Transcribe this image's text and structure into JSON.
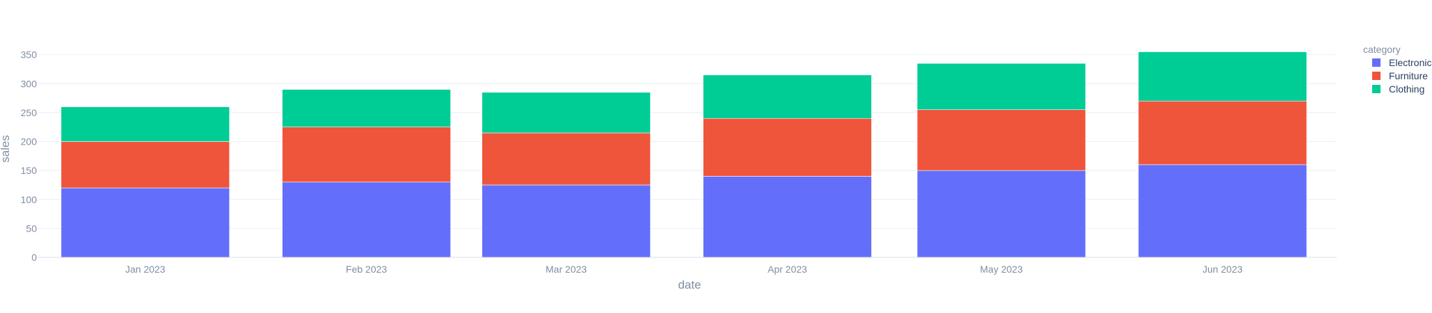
{
  "chart_data": {
    "type": "bar",
    "stacked": true,
    "categories": [
      "Jan 2023",
      "Feb 2023",
      "Mar 2023",
      "Apr 2023",
      "May 2023",
      "Jun 2023"
    ],
    "x_dates": [
      "2023-01-01",
      "2023-02-01",
      "2023-03-01",
      "2023-04-01",
      "2023-05-01",
      "2023-06-01"
    ],
    "series": [
      {
        "name": "Electronics",
        "color": "#636efa",
        "values": [
          120,
          130,
          125,
          140,
          150,
          160
        ]
      },
      {
        "name": "Furniture",
        "color": "#ef553b",
        "values": [
          80,
          95,
          90,
          100,
          105,
          110
        ]
      },
      {
        "name": "Clothing",
        "color": "#00cc96",
        "values": [
          60,
          65,
          70,
          75,
          80,
          85
        ]
      }
    ],
    "xlabel": "date",
    "ylabel": "sales",
    "ylim": [
      0,
      370
    ],
    "yticks": [
      0,
      50,
      100,
      150,
      200,
      250,
      300,
      350
    ],
    "legend_title": "category",
    "legend_position": "top-right",
    "grid": true
  }
}
